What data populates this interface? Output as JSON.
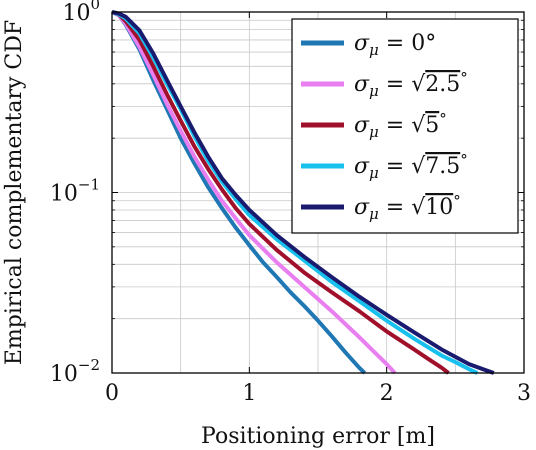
{
  "chart_data": {
    "type": "line",
    "xlabel": "Positioning error [m]",
    "ylabel": "Empirical complementary CDF",
    "xlim": [
      0,
      3
    ],
    "ylim": [
      0.01,
      1
    ],
    "yscale": "log",
    "grid": true,
    "legend_position": "top-right",
    "x_ticks": [
      {
        "value": 0,
        "label": "0"
      },
      {
        "value": 1,
        "label": "1"
      },
      {
        "value": 2,
        "label": "2"
      },
      {
        "value": 3,
        "label": "3"
      }
    ],
    "y_ticks": [
      {
        "value": 1,
        "base": "10",
        "exp": "0"
      },
      {
        "value": 0.1,
        "base": "10",
        "exp": "−1"
      },
      {
        "value": 0.01,
        "base": "10",
        "exp": "−2"
      }
    ],
    "series": [
      {
        "name": "σμ = 0°",
        "label": {
          "lhs": "σ",
          "sub": "μ",
          "rhs": " = 0°",
          "root": ""
        },
        "color": "#1f77b4",
        "x": [
          0,
          0.05,
          0.1,
          0.2,
          0.3,
          0.4,
          0.5,
          0.6,
          0.7,
          0.8,
          0.9,
          1.0,
          1.1,
          1.2,
          1.3,
          1.4,
          1.5,
          1.6,
          1.7,
          1.8,
          1.84
        ],
        "y": [
          1.0,
          0.96,
          0.85,
          0.62,
          0.42,
          0.29,
          0.2,
          0.145,
          0.107,
          0.082,
          0.064,
          0.051,
          0.041,
          0.034,
          0.028,
          0.0235,
          0.0195,
          0.016,
          0.013,
          0.0107,
          0.01
        ]
      },
      {
        "name": "σμ = √2.5°",
        "label": {
          "lhs": "σ",
          "sub": "μ",
          "rhs": " = ",
          "root": "2.5",
          "post": "°"
        },
        "color": "#e97ef0",
        "x": [
          0,
          0.05,
          0.1,
          0.2,
          0.3,
          0.4,
          0.5,
          0.6,
          0.7,
          0.8,
          0.9,
          1.0,
          1.2,
          1.4,
          1.6,
          1.8,
          1.9,
          2.0,
          2.06
        ],
        "y": [
          1.0,
          0.96,
          0.86,
          0.64,
          0.45,
          0.31,
          0.22,
          0.158,
          0.118,
          0.09,
          0.072,
          0.058,
          0.041,
          0.03,
          0.022,
          0.0158,
          0.0133,
          0.0112,
          0.01
        ]
      },
      {
        "name": "σμ = √5°",
        "label": {
          "lhs": "σ",
          "sub": "μ",
          "rhs": " = ",
          "root": "5",
          "post": "°"
        },
        "color": "#a0102a",
        "x": [
          0,
          0.05,
          0.1,
          0.2,
          0.3,
          0.4,
          0.5,
          0.6,
          0.7,
          0.8,
          0.9,
          1.0,
          1.2,
          1.4,
          1.6,
          1.8,
          2.0,
          2.2,
          2.3,
          2.4,
          2.45
        ],
        "y": [
          1.0,
          0.97,
          0.89,
          0.7,
          0.5,
          0.35,
          0.25,
          0.18,
          0.135,
          0.104,
          0.082,
          0.067,
          0.048,
          0.036,
          0.028,
          0.022,
          0.017,
          0.0135,
          0.012,
          0.0107,
          0.01
        ]
      },
      {
        "name": "σμ = √7.5°",
        "label": {
          "lhs": "σ",
          "sub": "μ",
          "rhs": " = ",
          "root": "7.5",
          "post": "°"
        },
        "color": "#18c0ee",
        "x": [
          0,
          0.05,
          0.1,
          0.2,
          0.3,
          0.4,
          0.5,
          0.6,
          0.7,
          0.8,
          0.9,
          1.0,
          1.2,
          1.4,
          1.6,
          1.8,
          2.0,
          2.2,
          2.4,
          2.5,
          2.6,
          2.66
        ],
        "y": [
          1.0,
          0.97,
          0.92,
          0.76,
          0.56,
          0.4,
          0.29,
          0.205,
          0.15,
          0.115,
          0.092,
          0.075,
          0.055,
          0.042,
          0.032,
          0.025,
          0.0195,
          0.0155,
          0.0125,
          0.0115,
          0.0105,
          0.01
        ]
      },
      {
        "name": "σμ = √10°",
        "label": {
          "lhs": "σ",
          "sub": "μ",
          "rhs": " = ",
          "root": "10",
          "post": "°"
        },
        "color": "#1a1a6e",
        "x": [
          0,
          0.05,
          0.1,
          0.2,
          0.3,
          0.4,
          0.5,
          0.6,
          0.7,
          0.8,
          0.9,
          1.0,
          1.2,
          1.4,
          1.6,
          1.8,
          2.0,
          2.2,
          2.4,
          2.6,
          2.7,
          2.78
        ],
        "y": [
          1.0,
          0.98,
          0.94,
          0.79,
          0.59,
          0.42,
          0.3,
          0.215,
          0.158,
          0.12,
          0.097,
          0.08,
          0.058,
          0.044,
          0.034,
          0.0265,
          0.021,
          0.0168,
          0.0135,
          0.0112,
          0.0105,
          0.01
        ]
      }
    ]
  }
}
